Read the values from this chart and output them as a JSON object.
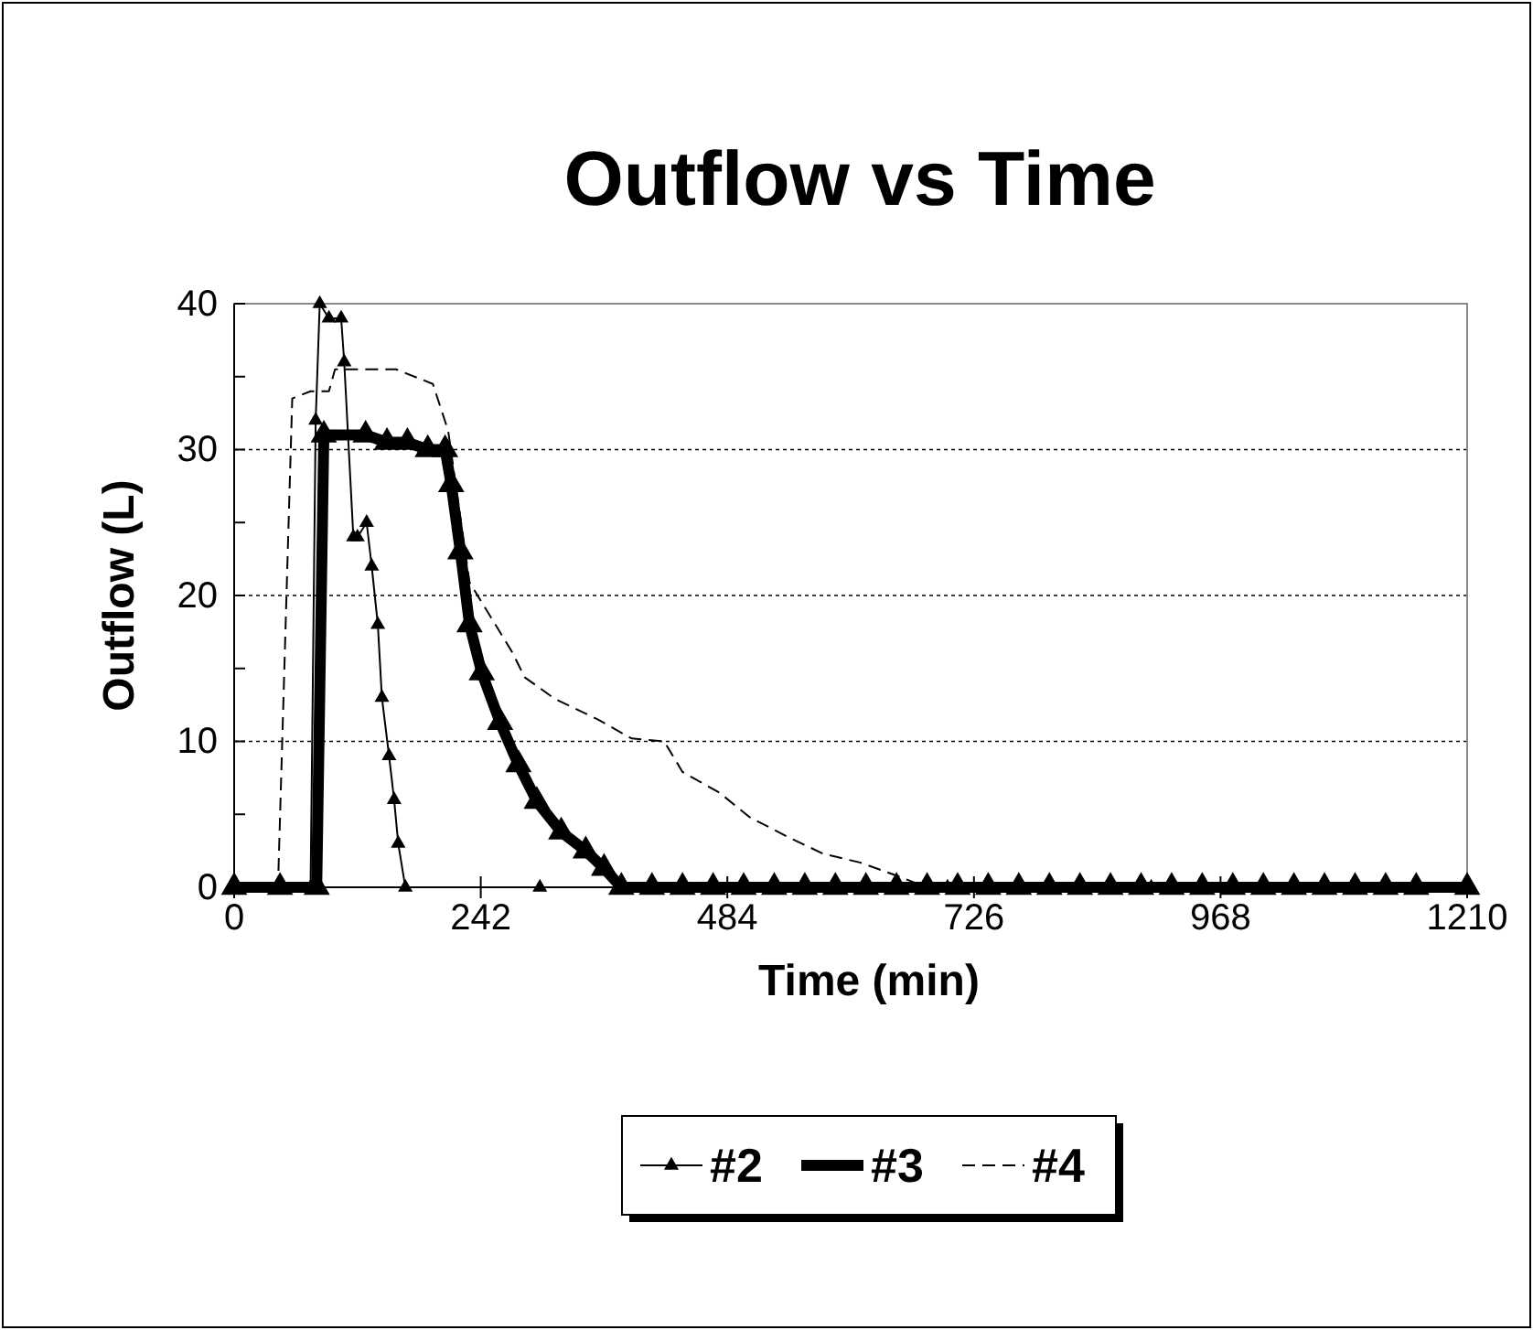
{
  "chart_data": {
    "type": "line",
    "title": "Outflow vs Time",
    "xlabel": "Time (min)",
    "ylabel": "Outflow (L)",
    "xlim": [
      0,
      1210
    ],
    "xticks": [
      0,
      242,
      484,
      726,
      968,
      1210
    ],
    "ylim": [
      0,
      40
    ],
    "yticks": [
      0,
      {
        "value": 5,
        "label": null
      },
      10,
      {
        "value": 15,
        "label": null
      },
      20,
      {
        "value": 25,
        "label": null
      },
      30,
      {
        "value": 35,
        "label": null
      },
      40
    ],
    "grid": "y",
    "legend": "bottom",
    "series": [
      {
        "name": "#2",
        "color": "#000000",
        "marker": "triangle",
        "line_style": "solid",
        "x": [
          0,
          75,
          80,
          84,
          93,
          105,
          108,
          117,
          121,
          130,
          135,
          141,
          145,
          152,
          157,
          161,
          168,
          300,
          500,
          700,
          900,
          1100,
          1210
        ],
        "values": [
          0,
          0,
          32,
          40,
          39,
          39,
          36,
          24,
          24,
          25,
          22,
          18,
          13,
          9,
          6,
          3,
          0,
          0,
          0,
          0,
          0,
          0,
          0
        ]
      },
      {
        "name": "#3",
        "color": "#000000",
        "marker": "triangle",
        "line_style": "solid",
        "x": [
          0,
          45,
          81,
          88,
          129,
          150,
          170,
          190,
          207,
          213,
          222,
          231,
          243,
          261,
          279,
          297,
          321,
          345,
          363,
          380,
          410,
          440,
          470,
          500,
          530,
          560,
          590,
          620,
          650,
          680,
          710,
          740,
          770,
          800,
          830,
          860,
          890,
          920,
          950,
          980,
          1010,
          1040,
          1070,
          1100,
          1130,
          1160,
          1210
        ],
        "values": [
          0,
          0,
          0,
          31,
          31,
          30.5,
          30.5,
          30,
          30,
          27.6,
          23,
          18,
          14.7,
          11.3,
          8.4,
          5.9,
          3.8,
          2.5,
          1.3,
          0,
          0,
          0,
          0,
          0,
          0,
          0,
          0,
          0,
          0,
          0,
          0,
          0,
          0,
          0,
          0,
          0,
          0,
          0,
          0,
          0,
          0,
          0,
          0,
          0,
          0,
          0,
          0
        ]
      },
      {
        "name": "#4",
        "color": "#000000",
        "marker": "none",
        "line_style": "dashed",
        "x": [
          0,
          43,
          57,
          75,
          93,
          99,
          159,
          195,
          210,
          231,
          273,
          285,
          315,
          357,
          390,
          422,
          440,
          476,
          506,
          542,
          578,
          614,
          650,
          680,
          800,
          1000,
          1210
        ],
        "values": [
          0,
          0,
          33.5,
          34,
          34,
          35.5,
          35.5,
          34.5,
          31.3,
          20.9,
          16.1,
          14.4,
          12.9,
          11.5,
          10.2,
          10,
          7.9,
          6.5,
          4.8,
          3.5,
          2.3,
          1.7,
          0.8,
          0,
          0,
          0,
          0
        ]
      }
    ]
  }
}
